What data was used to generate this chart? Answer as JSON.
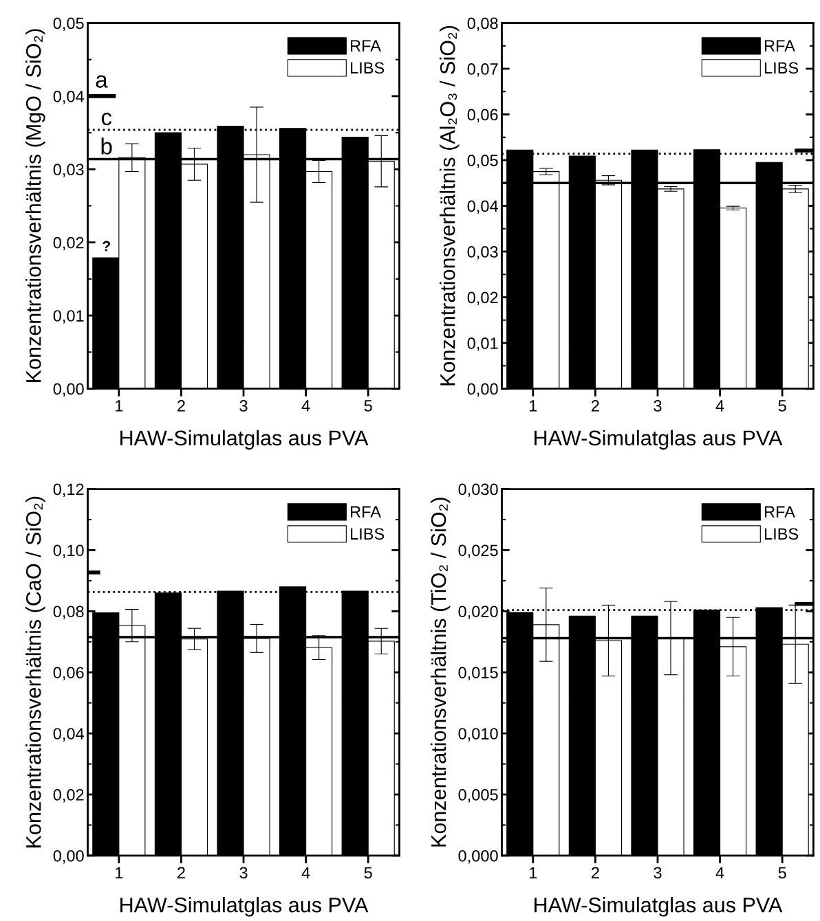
{
  "chart_data": [
    {
      "type": "bar",
      "xlabel": "HAW-Simulatglas aus PVA",
      "ylabel": "Konzentrationsverhältnis (MgO / SiO₂)",
      "x": [
        1,
        2,
        3,
        4,
        5
      ],
      "series": [
        {
          "name": "RFA",
          "color": "#000000",
          "values": [
            0.0179,
            0.035,
            0.0359,
            0.0356,
            0.0344
          ]
        },
        {
          "name": "LIBS",
          "color": "#ffffff",
          "values": [
            0.0316,
            0.0307,
            0.032,
            0.0297,
            0.0311
          ],
          "errors": [
            0.0019,
            0.0022,
            0.0065,
            0.0015,
            0.0035
          ]
        },
        {
          "type": "line",
          "color": "#000000",
          "x": [
            0.5,
            0.95
          ],
          "values": [
            0.04,
            0.04
          ]
        }
      ],
      "xlim": [
        0.5,
        5.5
      ],
      "xticks": [
        1,
        2,
        3,
        4,
        5
      ],
      "ylim": [
        0,
        0.05
      ],
      "yticks": [
        {
          "value": 0,
          "label": "0,00"
        },
        {
          "value": 0.01,
          "label": "0,01"
        },
        {
          "value": 0.02,
          "label": "0,02"
        },
        {
          "value": 0.03,
          "label": "0,03"
        },
        {
          "value": 0.04,
          "label": "0,04"
        },
        {
          "value": 0.05,
          "label": "0,05"
        }
      ],
      "ref_lines": [
        {
          "axis": "y",
          "value": 0.0314,
          "label": "b",
          "line_style": "solid"
        },
        {
          "axis": "y",
          "value": 0.0354,
          "label": "c",
          "line_style": "dotted"
        }
      ],
      "annotations": [
        {
          "text": "a",
          "x": 0.72,
          "y": 0.04
        },
        {
          "text": "?",
          "x": 0.8,
          "y": 0.0179
        }
      ],
      "legend": "top right",
      "grid": false
    },
    {
      "type": "bar",
      "xlabel": "HAW-Simulatglas aus PVA",
      "ylabel": "Konzentrationsverhältnis (Al₂O₃ / SiO₂)",
      "x": [
        1,
        2,
        3,
        4,
        5
      ],
      "series": [
        {
          "name": "RFA",
          "color": "#000000",
          "values": [
            0.0522,
            0.0509,
            0.0522,
            0.0523,
            0.0495
          ]
        },
        {
          "name": "LIBS",
          "color": "#ffffff",
          "values": [
            0.0475,
            0.0456,
            0.0437,
            0.0395,
            0.0437
          ],
          "errors": [
            0.0007,
            0.001,
            0.0005,
            0.0004,
            0.0008
          ]
        },
        {
          "type": "line",
          "color": "#000000",
          "x": [
            5.2,
            5.5
          ],
          "values": [
            0.0521,
            0.0521
          ]
        }
      ],
      "xlim": [
        0.5,
        5.5
      ],
      "xticks": [
        1,
        2,
        3,
        4,
        5
      ],
      "ylim": [
        0,
        0.08
      ],
      "yticks": [
        {
          "value": 0,
          "label": "0,00"
        },
        {
          "value": 0.01,
          "label": "0,01"
        },
        {
          "value": 0.02,
          "label": "0,02"
        },
        {
          "value": 0.03,
          "label": "0,03"
        },
        {
          "value": 0.04,
          "label": "0,04"
        },
        {
          "value": 0.05,
          "label": "0,05"
        },
        {
          "value": 0.06,
          "label": "0,06"
        },
        {
          "value": 0.07,
          "label": "0,07"
        },
        {
          "value": 0.08,
          "label": "0,08"
        }
      ],
      "ref_lines": [
        {
          "axis": "y",
          "value": 0.045,
          "line_style": "solid"
        },
        {
          "axis": "y",
          "value": 0.0514,
          "line_style": "dotted"
        }
      ],
      "legend": "top right",
      "grid": false
    },
    {
      "type": "bar",
      "xlabel": "HAW-Simulatglas aus PVA",
      "ylabel": "Konzentrationsverhältnis (CaO / SiO₂)",
      "x": [
        1,
        2,
        3,
        4,
        5
      ],
      "series": [
        {
          "name": "RFA",
          "color": "#000000",
          "values": [
            0.0795,
            0.086,
            0.0866,
            0.088,
            0.0866
          ]
        },
        {
          "name": "LIBS",
          "color": "#ffffff",
          "values": [
            0.0753,
            0.0709,
            0.0711,
            0.0681,
            0.0702
          ],
          "errors": [
            0.0053,
            0.0035,
            0.0046,
            0.0039,
            0.0042
          ]
        },
        {
          "type": "line",
          "color": "#000000",
          "x": [
            0.5,
            0.7
          ],
          "values": [
            0.0927,
            0.0927
          ]
        }
      ],
      "xlim": [
        0.5,
        5.5
      ],
      "xticks": [
        1,
        2,
        3,
        4,
        5
      ],
      "ylim": [
        0,
        0.12
      ],
      "yticks": [
        {
          "value": 0,
          "label": "0,00"
        },
        {
          "value": 0.02,
          "label": "0,02"
        },
        {
          "value": 0.04,
          "label": "0,04"
        },
        {
          "value": 0.06,
          "label": "0,06"
        },
        {
          "value": 0.08,
          "label": "0,08"
        },
        {
          "value": 0.1,
          "label": "0,10"
        },
        {
          "value": 0.12,
          "label": "0,12"
        }
      ],
      "ref_lines": [
        {
          "axis": "y",
          "value": 0.0715,
          "line_style": "solid"
        },
        {
          "axis": "y",
          "value": 0.0863,
          "line_style": "dotted"
        }
      ],
      "legend": "top right",
      "grid": false
    },
    {
      "type": "bar",
      "xlabel": "HAW-Simulatglas aus PVA",
      "ylabel": "Konzentrationsverhältnis (TiO₂ / SiO₂)",
      "x": [
        1,
        2,
        3,
        4,
        5
      ],
      "series": [
        {
          "name": "RFA",
          "color": "#000000",
          "values": [
            0.0199,
            0.0196,
            0.0196,
            0.0201,
            0.0203
          ]
        },
        {
          "name": "LIBS",
          "color": "#ffffff",
          "values": [
            0.0189,
            0.0176,
            0.0178,
            0.0171,
            0.0173
          ],
          "errors": [
            0.003,
            0.0029,
            0.003,
            0.0024,
            0.0032
          ]
        },
        {
          "type": "line",
          "color": "#000000",
          "x": [
            5.2,
            5.5
          ],
          "values": [
            0.0206,
            0.0206
          ]
        }
      ],
      "xlim": [
        0.5,
        5.5
      ],
      "xticks": [
        1,
        2,
        3,
        4,
        5
      ],
      "ylim": [
        0,
        0.03
      ],
      "yticks": [
        {
          "value": 0,
          "label": "0,000"
        },
        {
          "value": 0.005,
          "label": "0,005"
        },
        {
          "value": 0.01,
          "label": "0,010"
        },
        {
          "value": 0.015,
          "label": "0,015"
        },
        {
          "value": 0.02,
          "label": "0,020"
        },
        {
          "value": 0.025,
          "label": "0,025"
        },
        {
          "value": 0.03,
          "label": "0,030"
        }
      ],
      "ref_lines": [
        {
          "axis": "y",
          "value": 0.0178,
          "line_style": "solid"
        },
        {
          "axis": "y",
          "value": 0.0201,
          "line_style": "dotted"
        }
      ],
      "legend": "top right",
      "grid": false
    }
  ]
}
